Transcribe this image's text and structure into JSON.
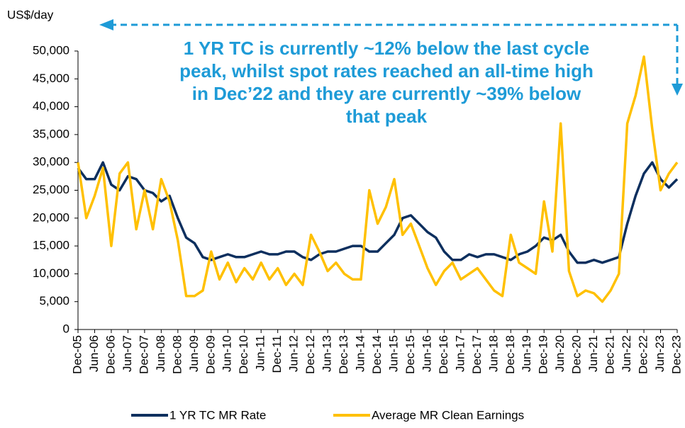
{
  "chart_data": {
    "type": "line",
    "y_axis_label": "US$/day",
    "annotation": [
      "1 YR TC is currently ~12% below the last cycle",
      "peak, whilst spot rates reached an all-time high",
      "in Dec’22 and they are currently ~39% below",
      "that peak"
    ],
    "categories": [
      "Dec-05",
      null,
      "Jun-06",
      null,
      "Dec-06",
      null,
      "Jun-07",
      null,
      "Dec-07",
      null,
      "Jun-08",
      null,
      "Dec-08",
      null,
      "Jun-09",
      null,
      "Dec-09",
      null,
      "Jun-10",
      null,
      "Dec-10",
      null,
      "Jun-11",
      null,
      "Dec-11",
      null,
      "Jun-12",
      null,
      "Dec-12",
      null,
      "Jun-13",
      null,
      "Dec-13",
      null,
      "Jun-14",
      null,
      "Dec-14",
      null,
      "Jun-15",
      null,
      "Dec-15",
      null,
      "Jun-16",
      null,
      "Dec-16",
      null,
      "Jun-17",
      null,
      "Dec-17",
      null,
      "Jun-18",
      null,
      "Dec-18",
      null,
      "Jun-19",
      null,
      "Dec-19",
      null,
      "Jun-20",
      null,
      "Dec-20",
      null,
      "Jun-21",
      null,
      "Dec-21",
      null,
      "Jun-22",
      null,
      "Dec-22",
      null,
      "Jun-23",
      null,
      "Dec-23"
    ],
    "series": [
      {
        "name": "1 YR TC MR Rate",
        "color": "#0d2f5e",
        "values": [
          29000,
          27000,
          27000,
          30000,
          26000,
          25000,
          27500,
          27000,
          25000,
          24500,
          23000,
          24000,
          20000,
          16500,
          15500,
          13000,
          12500,
          13000,
          13500,
          13000,
          13000,
          13500,
          14000,
          13500,
          13500,
          14000,
          14000,
          13000,
          12500,
          13500,
          14000,
          14000,
          14500,
          15000,
          15000,
          14000,
          14000,
          15500,
          17000,
          20000,
          20500,
          19000,
          17500,
          16500,
          14000,
          12500,
          12500,
          13500,
          13000,
          13500,
          13500,
          13000,
          12500,
          13500,
          14000,
          15000,
          16500,
          16000,
          17000,
          14000,
          12000,
          12000,
          12500,
          12000,
          12500,
          13000,
          19000,
          24000,
          28000,
          30000,
          27000,
          25500,
          27000
        ]
      },
      {
        "name": "Average MR Clean Earnings",
        "color": "#ffc000",
        "values": [
          30000,
          20000,
          24000,
          29000,
          15000,
          28000,
          30000,
          18000,
          25000,
          18000,
          27000,
          23000,
          16000,
          6000,
          6000,
          7000,
          14000,
          9000,
          12000,
          8500,
          11000,
          9000,
          12000,
          9000,
          11000,
          8000,
          10000,
          8000,
          17000,
          14000,
          10500,
          12000,
          10000,
          9000,
          9000,
          25000,
          19000,
          22000,
          27000,
          17000,
          19000,
          15000,
          11000,
          8000,
          10500,
          12000,
          9000,
          10000,
          11000,
          9000,
          7000,
          6000,
          17000,
          12000,
          11000,
          10000,
          23000,
          14000,
          37000,
          10500,
          6000,
          7000,
          6500,
          5000,
          7000,
          10000,
          37000,
          42000,
          49000,
          36000,
          25000,
          28000,
          30000
        ]
      }
    ],
    "ylim": [
      0,
      50000
    ],
    "yticks": [
      0,
      {
        "value": 5000,
        "label": "5,000"
      },
      {
        "value": 10000,
        "label": "10,000"
      },
      {
        "value": 15000,
        "label": "15,000"
      },
      {
        "value": 20000,
        "label": "20,000"
      },
      {
        "value": 25000,
        "label": "25,000"
      },
      {
        "value": 30000,
        "label": "30,000"
      },
      {
        "value": 35000,
        "label": "35,000"
      },
      {
        "value": 40000,
        "label": "40,000"
      },
      {
        "value": 45000,
        "label": "45,000"
      },
      {
        "value": 50000,
        "label": "50,000"
      }
    ],
    "grid": false,
    "legend": "bottom"
  }
}
